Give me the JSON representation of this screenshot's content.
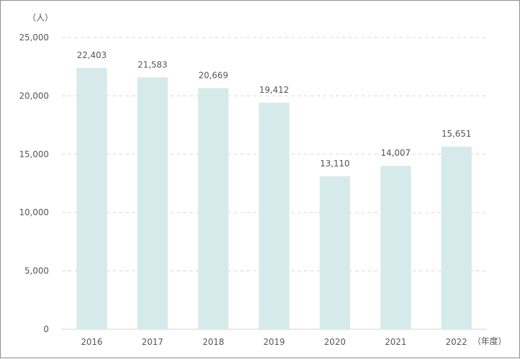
{
  "chart_data": {
    "type": "bar",
    "categories": [
      "2016",
      "2017",
      "2018",
      "2019",
      "2020",
      "2021",
      "2022"
    ],
    "values": [
      22403,
      21583,
      20669,
      19412,
      13110,
      14007,
      15651
    ],
    "value_labels": [
      "22,403",
      "21,583",
      "20,669",
      "19,412",
      "13,110",
      "14,007",
      "15,651"
    ],
    "y_ticks": [
      0,
      5000,
      10000,
      15000,
      20000,
      25000
    ],
    "y_tick_labels": [
      "0",
      "5,000",
      "10,000",
      "15,000",
      "20,000",
      "25,000"
    ],
    "ylim": [
      0,
      25000
    ],
    "y_unit": "（人）",
    "x_unit": "（年度）",
    "grid": "horizontal-dashed",
    "colors": {
      "bar": "#d6eaeb",
      "grid": "#d9d9d9",
      "text": "#555555"
    }
  }
}
